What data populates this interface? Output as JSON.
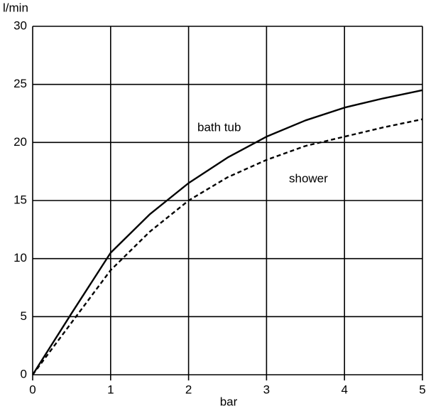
{
  "chart_data": {
    "type": "line",
    "x_label": "bar",
    "y_label": "l/min",
    "x": [
      0,
      0.5,
      1,
      1.5,
      2,
      2.5,
      3,
      3.5,
      4,
      4.5,
      5
    ],
    "series": [
      {
        "name": "bath tub",
        "color": "#000000",
        "dash": false,
        "values": [
          0,
          5.3,
          10.5,
          13.8,
          16.5,
          18.7,
          20.5,
          21.9,
          23,
          23.8,
          24.5
        ]
      },
      {
        "name": "shower",
        "color": "#000000",
        "dash": true,
        "values": [
          0,
          4.5,
          9,
          12.3,
          15,
          17,
          18.5,
          19.7,
          20.5,
          21.3,
          22
        ]
      }
    ],
    "xlim": [
      0,
      5
    ],
    "xticks": [
      0,
      1,
      2,
      3,
      4,
      5
    ],
    "ylim": [
      0,
      30
    ],
    "yticks": [
      0,
      5,
      10,
      15,
      20,
      25,
      30
    ],
    "grid": true
  }
}
